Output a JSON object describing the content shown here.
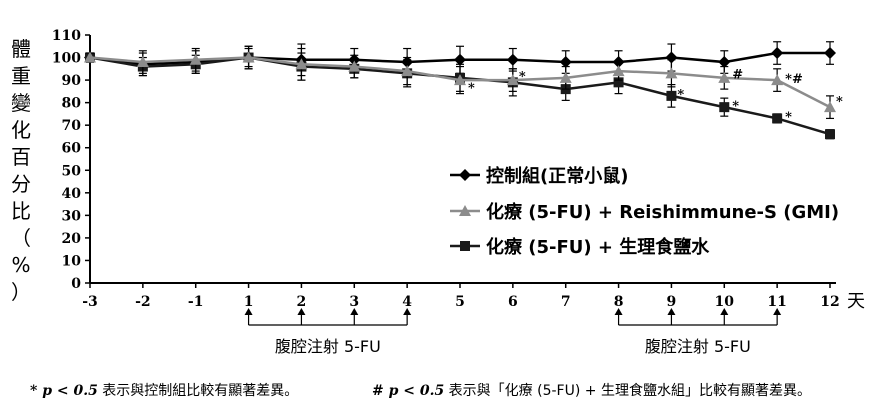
{
  "chart_data": {
    "type": "line",
    "title": "",
    "ylabel": "體重變化百分比（%）",
    "xunit": "天",
    "x": [
      -3,
      -2,
      -1,
      1,
      2,
      3,
      4,
      5,
      6,
      7,
      8,
      9,
      10,
      11,
      12
    ],
    "xtick_labels": [
      "-3",
      "-2",
      "-1",
      "1",
      "2",
      "3",
      "4",
      "5",
      "6",
      "7",
      "8",
      "9",
      "10",
      "11",
      "12"
    ],
    "ylim": [
      0,
      110
    ],
    "yticks": [
      0,
      10,
      20,
      30,
      40,
      50,
      60,
      70,
      80,
      90,
      100,
      110
    ],
    "grid": false,
    "legend_position": "center-right",
    "series": [
      {
        "name": "控制組(正常小鼠)",
        "marker": "diamond",
        "color": "#000000",
        "values": [
          100,
          97,
          98,
          100,
          99,
          99,
          98,
          99,
          99,
          98,
          98,
          100,
          98,
          102,
          102
        ],
        "errors": [
          2,
          5,
          5,
          5,
          7,
          5,
          6,
          6,
          5,
          5,
          5,
          6,
          5,
          5,
          5
        ]
      },
      {
        "name": "化療 (5-FU) + Reishimmune-S (GMI)",
        "marker": "triangle",
        "color": "#8c8c8c",
        "values": [
          100,
          98,
          99,
          100,
          97,
          96,
          94,
          90,
          90,
          91,
          94,
          93,
          91,
          90,
          78
        ],
        "errors": [
          2,
          5,
          5,
          5,
          7,
          5,
          6,
          6,
          5,
          5,
          4,
          6,
          5,
          5,
          5
        ]
      },
      {
        "name": "化療 (5-FU) + 生理食鹽水",
        "marker": "square",
        "color": "#1a1a1a",
        "values": [
          100,
          96,
          97,
          100,
          96,
          95,
          93,
          91,
          89,
          86,
          89,
          83,
          78,
          73,
          66
        ],
        "errors": [
          2,
          4,
          4,
          4,
          6,
          4,
          6,
          6,
          6,
          5,
          5,
          5,
          4,
          2,
          2
        ]
      }
    ],
    "annotations": [
      {
        "x": 5,
        "text": "*"
      },
      {
        "x": 6,
        "text": "*"
      },
      {
        "x": 9,
        "text": "*"
      },
      {
        "x": 10,
        "text": "#"
      },
      {
        "x": 10,
        "text": "*"
      },
      {
        "x": 11,
        "text": "*#"
      },
      {
        "x": 11,
        "text": "*"
      },
      {
        "x": 12,
        "text": "*"
      }
    ],
    "injection_groups": [
      {
        "days": [
          1,
          2,
          3,
          4
        ],
        "label": "腹腔注射 5-FU"
      },
      {
        "days": [
          8,
          9,
          10,
          11
        ],
        "label": "腹腔注射 5-FU"
      }
    ]
  },
  "footnotes": {
    "left_symbol": "* p < 0.5",
    "left_text": " 表示與控制組比較有顯著差異。",
    "right_symbol": "# p < 0.5",
    "right_text": " 表示與「化療 (5-FU) + 生理食鹽水組」比較有顯著差異。"
  }
}
